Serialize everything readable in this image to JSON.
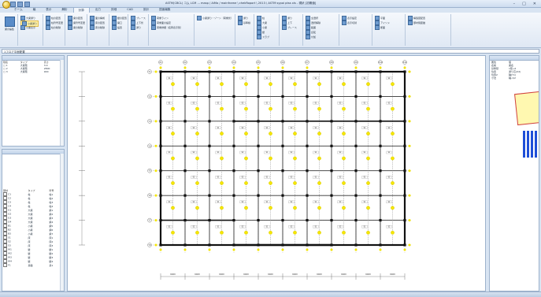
{
  "window": {
    "title": "ASTM(CBCL) コム LCM ... masp / AiMa / mainframe \\ chekRoport \\ 2013 \\ ASTM sypoi ptss xls - 現状 [初期値]",
    "controls": [
      "–",
      "□",
      "✕"
    ]
  },
  "tabs": [
    "ホーム",
    "編",
    "表示",
    "解析",
    "計算",
    "出力",
    "詳細",
    "CAD",
    "設計",
    "図面編集"
  ],
  "active_tab_index": 4,
  "ribbon": {
    "big_button": "梁の編集",
    "group1": [
      "大梁通り",
      "小梁通り",
      "小梁表示"
    ],
    "group2": [
      "柱の配置",
      "柱符号変更",
      "柱の削除"
    ],
    "group3": [
      "梁の配置",
      "梁符号変更",
      "梁の削除"
    ],
    "group4": [
      "面の構成",
      "床の配置",
      "床の削除"
    ],
    "group5": [
      "壁の配置",
      "開口",
      "設置"
    ],
    "group6": [
      "ブレース",
      "上下伏",
      "通り"
    ],
    "group7": [
      "荷重ライン",
      "荷重面の設定",
      "荷重詳細（名称表示別）"
    ],
    "group8": [
      "小梁通り・ゾーン（荷重伏）"
    ],
    "group9": [
      "通り",
      "基準線"
    ],
    "group10": [
      "柱",
      "大梁",
      "小梁",
      "壁",
      "スラブ"
    ],
    "group11": [
      "通り",
      "上下",
      "ブレース"
    ],
    "group12": [
      "全選択",
      "選択解除",
      "範囲",
      "反転",
      "付加"
    ],
    "group13": [
      "表示設定",
      "表示切替"
    ],
    "group14": [
      "平面",
      "アイソメ",
      "断面"
    ],
    "group15": [
      "構造図配置",
      "部材間距離"
    ]
  },
  "address_bar": "1フロア平面配置",
  "left_top": {
    "headers": [
      "階名",
      "タイプ",
      "高さ"
    ],
    "rows": [
      [
        "□ 1",
        "大梁階",
        "3.0"
      ],
      [
        "□ 2",
        "大梁階",
        "2800"
      ],
      [
        "□ 3",
        "大梁階",
        "900"
      ]
    ]
  },
  "left_bottom": {
    "headers": [
      "部材",
      "タイプ",
      "符号"
    ],
    "rows": [
      [
        "C1",
        "柱",
        "柱1"
      ],
      [
        "C2",
        "柱",
        "柱2"
      ],
      [
        "C3",
        "柱",
        "柱3"
      ],
      [
        "C4",
        "柱",
        "柱4"
      ],
      [
        "G1",
        "大梁",
        "梁1"
      ],
      [
        "G2",
        "大梁",
        "梁2"
      ],
      [
        "G3",
        "大梁",
        "梁3"
      ],
      [
        "G4",
        "大梁",
        "梁4"
      ],
      [
        "B1",
        "小梁",
        "梁5"
      ],
      [
        "B2",
        "小梁",
        "梁6"
      ],
      [
        "B3",
        "小梁",
        "梁7"
      ],
      [
        "S1",
        "床",
        "床1"
      ],
      [
        "S2",
        "床",
        "床2"
      ],
      [
        "S3",
        "床",
        "床3"
      ],
      [
        "W1",
        "壁",
        "壁1"
      ],
      [
        "W2",
        "壁",
        "壁2"
      ],
      [
        "W3",
        "壁",
        "壁3"
      ],
      [
        "W4",
        "壁",
        "壁4"
      ],
      [
        "F1",
        "基礎",
        "基1"
      ]
    ]
  },
  "grid": {
    "top_labels": [
      "X1",
      "X2",
      "X3",
      "X4",
      "X5",
      "X6",
      "X7",
      "X8",
      "X9",
      "X10",
      "X11"
    ],
    "left_labels": [
      "Y1",
      "Y2",
      "Y3",
      "Y4",
      "Y5",
      "Y6",
      "Y7",
      "Y8"
    ],
    "bottom_dims": [
      "6400",
      "6400",
      "6400",
      "6400",
      "6400",
      "6400",
      "6400",
      "6400",
      "6400",
      "6400"
    ],
    "bay_labels": [
      "S1",
      "S2",
      "S1",
      "S2",
      "S1",
      "S2",
      "S1",
      "S2",
      "S1",
      "S2"
    ]
  },
  "right_panel": {
    "rows": [
      [
        "属性",
        "値"
      ],
      [
        "名前",
        "梁名"
      ],
      [
        "基準階",
        "1階→2"
      ],
      [
        "位置",
        "通り芯(X2)"
      ],
      [
        "位置2",
        "軸(Y1)"
      ],
      [
        "寸法",
        "軸-1/2"
      ]
    ]
  },
  "colors": {
    "accent": "#f5e600",
    "stroke": "#333333",
    "highlight": "#fff8b0",
    "note_border": "#d04040",
    "marker": "#1f4fd8"
  }
}
